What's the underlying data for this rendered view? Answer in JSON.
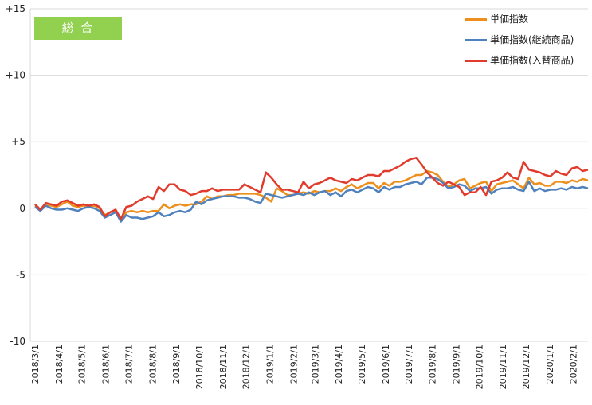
{
  "badge": {
    "label": "総 合",
    "color": "#92d050"
  },
  "chart_data": {
    "type": "line",
    "title": "",
    "xlabel": "",
    "ylabel": "",
    "ylim": [
      -10,
      15
    ],
    "y_ticks": [
      15,
      10,
      5,
      0,
      -5,
      -10
    ],
    "y_tick_labels": [
      "+15",
      "+10",
      "+5",
      "0",
      "-5",
      "-10"
    ],
    "grid": "horizontal",
    "legend_position": "top-right",
    "x_tick_labels": [
      "2018/3/1",
      "2018/4/1",
      "2018/5/1",
      "2018/6/1",
      "2018/7/1",
      "2018/8/1",
      "2018/9/1",
      "2018/10/1",
      "2018/11/1",
      "2018/12/1",
      "2019/1/1",
      "2019/2/1",
      "2019/3/1",
      "2019/4/1",
      "2019/5/1",
      "2019/6/1",
      "2019/7/1",
      "2019/8/1",
      "2019/9/1",
      "2019/10/1",
      "2019/11/1",
      "2019/12/1",
      "2020/1/1",
      "2020/2/1"
    ],
    "x_start": "2018-03-01",
    "weeks": 104,
    "series": [
      {
        "name": "単価指数",
        "color": "#ed8f1c",
        "values": [
          0.2,
          -0.1,
          0.3,
          0.2,
          0.1,
          0.3,
          0.5,
          0.2,
          0.1,
          0.2,
          0.1,
          0.2,
          0.0,
          -0.5,
          -0.3,
          -0.2,
          -0.8,
          -0.3,
          -0.2,
          -0.3,
          -0.2,
          -0.3,
          -0.2,
          -0.2,
          0.3,
          0.0,
          0.2,
          0.3,
          0.2,
          0.3,
          0.3,
          0.5,
          0.9,
          0.7,
          0.9,
          0.9,
          1.0,
          1.0,
          1.1,
          1.1,
          1.1,
          1.1,
          1.0,
          0.8,
          0.5,
          1.5,
          1.3,
          1.0,
          1.0,
          1.1,
          1.2,
          1.1,
          1.3,
          1.2,
          1.3,
          1.3,
          1.5,
          1.3,
          1.6,
          1.8,
          1.5,
          1.7,
          1.9,
          1.9,
          1.5,
          1.9,
          1.7,
          2.0,
          2.0,
          2.1,
          2.3,
          2.5,
          2.5,
          2.8,
          2.7,
          2.5,
          2.0,
          1.6,
          1.8,
          2.1,
          2.2,
          1.5,
          1.7,
          1.9,
          2.0,
          1.3,
          1.8,
          1.9,
          2.0,
          2.1,
          1.8,
          1.5,
          2.3,
          1.8,
          1.9,
          1.7,
          1.7,
          2.0,
          2.0,
          1.9,
          2.1,
          2.0,
          2.2,
          2.1
        ]
      },
      {
        "name": "単価指数(継続商品)",
        "color": "#4f81bd",
        "values": [
          0.1,
          -0.2,
          0.2,
          0.0,
          -0.1,
          -0.1,
          0.0,
          -0.1,
          -0.2,
          0.0,
          0.1,
          0.0,
          -0.2,
          -0.7,
          -0.5,
          -0.3,
          -1.0,
          -0.5,
          -0.7,
          -0.7,
          -0.8,
          -0.7,
          -0.6,
          -0.3,
          -0.6,
          -0.5,
          -0.3,
          -0.2,
          -0.3,
          -0.1,
          0.5,
          0.3,
          0.6,
          0.7,
          0.8,
          0.9,
          0.9,
          0.9,
          0.8,
          0.8,
          0.7,
          0.5,
          0.4,
          1.1,
          1.0,
          0.9,
          0.8,
          0.9,
          1.0,
          1.1,
          1.0,
          1.2,
          1.0,
          1.2,
          1.3,
          1.0,
          1.2,
          0.9,
          1.3,
          1.4,
          1.2,
          1.4,
          1.6,
          1.5,
          1.2,
          1.6,
          1.4,
          1.6,
          1.6,
          1.8,
          1.9,
          2.0,
          1.8,
          2.3,
          2.3,
          2.2,
          1.9,
          1.5,
          1.6,
          1.8,
          1.7,
          1.3,
          1.5,
          1.5,
          1.6,
          1.1,
          1.4,
          1.5,
          1.5,
          1.6,
          1.4,
          1.3,
          2.0,
          1.3,
          1.5,
          1.3,
          1.4,
          1.4,
          1.5,
          1.4,
          1.6,
          1.5,
          1.6,
          1.5
        ]
      },
      {
        "name": "単価指数(入替商品)",
        "color": "#e03b2c",
        "values": [
          0.3,
          -0.1,
          0.4,
          0.3,
          0.2,
          0.5,
          0.6,
          0.4,
          0.2,
          0.3,
          0.2,
          0.3,
          0.1,
          -0.6,
          -0.3,
          -0.1,
          -0.8,
          0.1,
          0.2,
          0.5,
          0.7,
          0.9,
          0.7,
          1.6,
          1.3,
          1.8,
          1.8,
          1.4,
          1.3,
          1.0,
          1.1,
          1.3,
          1.3,
          1.5,
          1.3,
          1.4,
          1.4,
          1.4,
          1.4,
          1.8,
          1.6,
          1.4,
          1.2,
          2.7,
          2.3,
          1.8,
          1.4,
          1.4,
          1.3,
          1.2,
          2.0,
          1.5,
          1.8,
          1.9,
          2.1,
          2.3,
          2.1,
          2.0,
          1.9,
          2.2,
          2.1,
          2.3,
          2.5,
          2.5,
          2.4,
          2.8,
          2.8,
          3.0,
          3.2,
          3.5,
          3.7,
          3.8,
          3.3,
          2.7,
          2.3,
          1.9,
          1.7,
          2.0,
          1.8,
          1.6,
          1.0,
          1.2,
          1.2,
          1.6,
          1.0,
          2.0,
          2.1,
          2.3,
          2.7,
          2.3,
          2.2,
          3.5,
          2.9,
          2.8,
          2.7,
          2.5,
          2.4,
          2.8,
          2.6,
          2.5,
          3.0,
          3.1,
          2.8,
          2.9
        ]
      }
    ]
  }
}
